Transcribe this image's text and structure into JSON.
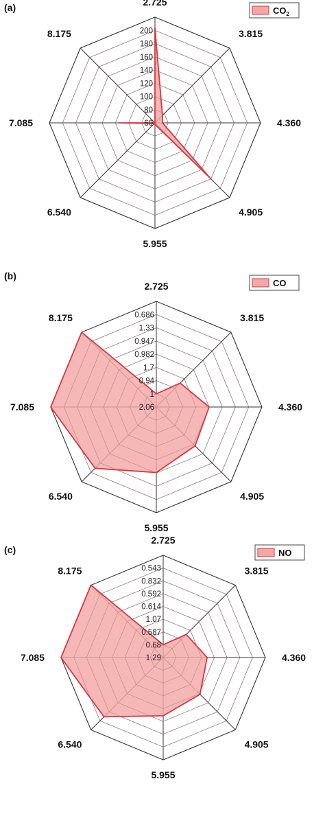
{
  "chart_data": [
    {
      "type": "radar",
      "panel_label": "(a)",
      "legend": {
        "name": "CO",
        "subscript": "2"
      },
      "axes": [
        "2.725",
        "3.815",
        "4.360",
        "4.905",
        "5.955",
        "6.540",
        "7.085",
        "8.175"
      ],
      "ticks": [
        "60",
        "80",
        "100",
        "120",
        "140",
        "160",
        "180",
        "200"
      ],
      "range": [
        60,
        200
      ],
      "values": [
        186,
        74,
        70,
        164,
        62,
        61,
        108,
        60
      ],
      "fill_color": "#f4a7a7",
      "line_color": "#d9363e"
    },
    {
      "type": "radar",
      "panel_label": "(b)",
      "legend": {
        "name": "CO",
        "subscript": ""
      },
      "axes": [
        "2.725",
        "3.815",
        "4.360",
        "4.905",
        "5.955",
        "6.540",
        "7.085",
        "8.175"
      ],
      "ticks": [
        "2.06",
        "1",
        "0.94",
        "1.7",
        "0.982",
        "0.947",
        "1.33",
        "0.686"
      ],
      "values_fraction_of_radius": [
        0.125,
        0.32,
        0.5,
        0.52,
        0.62,
        0.82,
        1.0,
        1.0
      ],
      "fill_color": "#f4a7a7",
      "line_color": "#d9363e"
    },
    {
      "type": "radar",
      "panel_label": "(c)",
      "legend": {
        "name": "NO",
        "subscript": ""
      },
      "axes": [
        "2.725",
        "3.815",
        "4.360",
        "4.905",
        "5.955",
        "6.540",
        "7.085",
        "8.175"
      ],
      "ticks": [
        "1.29",
        "0.68",
        "0.587",
        "1.07",
        "0.614",
        "0.592",
        "0.832",
        "0.543"
      ],
      "values_fraction_of_radius": [
        0.125,
        0.32,
        0.43,
        0.51,
        0.57,
        0.82,
        1.0,
        1.0
      ],
      "fill_color": "#f4a7a7",
      "line_color": "#d9363e"
    }
  ]
}
